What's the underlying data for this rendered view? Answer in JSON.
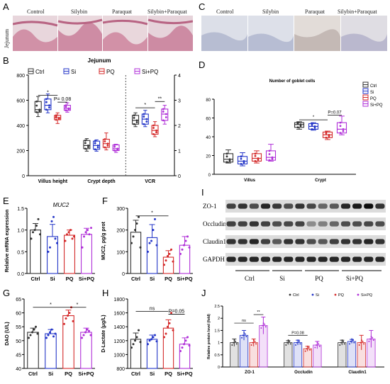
{
  "panels": {
    "A": {
      "letter": "A",
      "side_label": "Jejunum",
      "labels": [
        "Control",
        "Silybin",
        "Paraquat",
        "Silybin+Paraquat"
      ]
    },
    "C": {
      "letter": "C",
      "labels": [
        "Control",
        "Silybin",
        "Paraquat",
        "Silybin+Paraquat"
      ]
    },
    "I": {
      "letter": "I",
      "bands": [
        "ZO-1",
        "Occludin",
        "Claudin1",
        "GAPDH"
      ],
      "groups": [
        "Ctrl",
        "Si",
        "PQ",
        "Si+PQ"
      ]
    }
  },
  "colors": {
    "Ctrl": "#333333",
    "Si": "#2436c8",
    "PQ": "#d42a2a",
    "Si+PQ": "#b030d8"
  },
  "chart_data": [
    {
      "id": "B",
      "letter": "B",
      "type": "box",
      "title": "Jejunum",
      "legend": [
        "Ctrl",
        "Si",
        "PQ",
        "Si+PQ"
      ],
      "categories": [
        "Villus height",
        "Crypt depth",
        "VCR"
      ],
      "ylim_left": [
        0,
        800
      ],
      "yticks_left": [
        0,
        200,
        400,
        600,
        800
      ],
      "ylim_right": [
        0,
        4
      ],
      "yticks_right": [
        0,
        1,
        2,
        3,
        4
      ],
      "boxes": [
        {
          "cat": 0,
          "g": "Ctrl",
          "min": 470,
          "q1": 505,
          "med": 525,
          "q3": 590,
          "max": 630
        },
        {
          "cat": 0,
          "g": "Si",
          "min": 500,
          "q1": 525,
          "med": 560,
          "q3": 610,
          "max": 650
        },
        {
          "cat": 0,
          "g": "PQ",
          "min": 415,
          "q1": 445,
          "med": 460,
          "q3": 480,
          "max": 500
        },
        {
          "cat": 0,
          "g": "Si+PQ",
          "min": 505,
          "q1": 520,
          "med": 535,
          "q3": 560,
          "max": 580
        },
        {
          "cat": 1,
          "g": "Ctrl",
          "min": 195,
          "q1": 215,
          "med": 240,
          "q3": 280,
          "max": 295
        },
        {
          "cat": 1,
          "g": "Si",
          "min": 195,
          "q1": 210,
          "med": 240,
          "q3": 275,
          "max": 285
        },
        {
          "cat": 1,
          "g": "PQ",
          "min": 205,
          "q1": 225,
          "med": 255,
          "q3": 290,
          "max": 340
        },
        {
          "cat": 1,
          "g": "Si+PQ",
          "min": 185,
          "q1": 200,
          "med": 215,
          "q3": 245,
          "max": 250
        },
        {
          "cat": 2,
          "g": "Ctrl",
          "min": 1.95,
          "q1": 2.05,
          "med": 2.2,
          "q3": 2.4,
          "max": 2.5
        },
        {
          "cat": 2,
          "g": "Si",
          "min": 1.95,
          "q1": 2.05,
          "med": 2.25,
          "q3": 2.45,
          "max": 2.6
        },
        {
          "cat": 2,
          "g": "PQ",
          "min": 1.55,
          "q1": 1.65,
          "med": 1.8,
          "q3": 2.0,
          "max": 2.15
        },
        {
          "cat": 2,
          "g": "Si+PQ",
          "min": 2.05,
          "q1": 2.2,
          "med": 2.45,
          "q3": 2.65,
          "max": 2.8
        }
      ],
      "annotations": [
        {
          "text": "*",
          "cat": 0,
          "from": "Ctrl",
          "to": "PQ",
          "y": 640
        },
        {
          "text": "P= 0.08",
          "cat": 0,
          "from": "PQ",
          "to": "Si+PQ",
          "y": 585
        },
        {
          "text": "*",
          "cat": 2,
          "from": "Ctrl",
          "to": "PQ",
          "y": 2.7
        },
        {
          "text": "**",
          "cat": 2,
          "from": "PQ",
          "to": "Si+PQ",
          "y": 2.95
        }
      ]
    },
    {
      "id": "D",
      "letter": "D",
      "type": "box",
      "title": "Number of goblet cells",
      "legend": [
        "Ctrl",
        "Si",
        "PQ",
        "Si+PQ"
      ],
      "categories": [
        "Villus",
        "Crypt"
      ],
      "ylim": [
        0,
        80
      ],
      "yticks": [
        0,
        20,
        40,
        60,
        80
      ],
      "boxes": [
        {
          "cat": 0,
          "g": "Ctrl",
          "min": 12,
          "q1": 13,
          "med": 16,
          "q3": 22,
          "max": 26
        },
        {
          "cat": 0,
          "g": "Si",
          "min": 9,
          "q1": 11,
          "med": 14,
          "q3": 19,
          "max": 23
        },
        {
          "cat": 0,
          "g": "PQ",
          "min": 12,
          "q1": 14,
          "med": 17,
          "q3": 22,
          "max": 25
        },
        {
          "cat": 0,
          "g": "Si+PQ",
          "min": 14,
          "q1": 15,
          "med": 18,
          "q3": 25,
          "max": 32
        },
        {
          "cat": 1,
          "g": "Ctrl",
          "min": 48,
          "q1": 50,
          "med": 53,
          "q3": 55,
          "max": 56
        },
        {
          "cat": 1,
          "g": "Si",
          "min": 47,
          "q1": 48,
          "med": 51,
          "q3": 54,
          "max": 55
        },
        {
          "cat": 1,
          "g": "PQ",
          "min": 37,
          "q1": 39,
          "med": 42,
          "q3": 45,
          "max": 46
        },
        {
          "cat": 1,
          "g": "Si+PQ",
          "min": 42,
          "q1": 44,
          "med": 48,
          "q3": 55,
          "max": 62
        }
      ],
      "annotations": [
        {
          "text": "*",
          "cat": 1,
          "from": "Ctrl",
          "to": "PQ",
          "y": 58
        },
        {
          "text": "P=0.07",
          "cat": 1,
          "from": "PQ",
          "to": "Si+PQ",
          "y": 63
        }
      ]
    },
    {
      "id": "E",
      "letter": "E",
      "type": "bar",
      "title": "MUC2",
      "ylabel": "Relative mRNA expression",
      "categories": [
        "Ctrl",
        "Si",
        "PQ",
        "Si+PQ"
      ],
      "values": [
        1.0,
        0.85,
        0.88,
        0.9
      ],
      "errors": [
        0.15,
        0.28,
        0.12,
        0.14
      ],
      "points": [
        [
          0.8,
          0.95,
          1.0,
          1.1,
          1.25,
          0.9
        ],
        [
          0.5,
          0.6,
          1.2,
          1.3,
          0.8,
          0.7
        ],
        [
          0.75,
          0.9,
          0.95,
          1.0,
          0.8,
          0.85
        ],
        [
          0.6,
          0.85,
          0.95,
          1.0,
          0.9,
          1.05
        ]
      ],
      "ylim": [
        0,
        1.5
      ],
      "yticks": [
        0.0,
        0.5,
        1.0,
        1.5
      ],
      "ytick_labels": [
        "0.0",
        "0.5",
        "1.0",
        "1.5"
      ],
      "annotations": []
    },
    {
      "id": "F",
      "letter": "F",
      "type": "bar",
      "title": "",
      "ylabel": "MUC2, pg/g prot",
      "categories": [
        "Ctrl",
        "Si",
        "PQ",
        "Si+PQ"
      ],
      "values": [
        190,
        165,
        75,
        130
      ],
      "errors": [
        55,
        60,
        30,
        40
      ],
      "points": [
        [
          140,
          170,
          200,
          230,
          260,
          120
        ],
        [
          100,
          140,
          150,
          200,
          250,
          130
        ],
        [
          40,
          60,
          80,
          90,
          110,
          55
        ],
        [
          90,
          110,
          130,
          150,
          170,
          120
        ]
      ],
      "ylim": [
        0,
        300
      ],
      "yticks": [
        0,
        100,
        200,
        300
      ],
      "ytick_labels": [
        "0",
        "100",
        "200",
        "300"
      ],
      "annotations": [
        {
          "text": "*",
          "from": "Ctrl",
          "to": "PQ",
          "y": 265
        }
      ]
    },
    {
      "id": "G",
      "letter": "G",
      "type": "bar",
      "title": "",
      "ylabel": "DAO (U/L)",
      "categories": [
        "Ctrl",
        "Si",
        "PQ",
        "Si+PQ"
      ],
      "values": [
        53,
        52.5,
        59,
        53
      ],
      "errors": [
        1.5,
        1.5,
        2,
        1.5
      ],
      "points": [
        [
          51,
          52,
          53,
          54,
          55,
          52.5
        ],
        [
          51,
          52,
          53,
          54,
          51.5,
          52.5
        ],
        [
          56,
          58,
          59,
          60,
          62,
          57
        ],
        [
          51,
          52,
          53,
          54,
          53.5,
          52
        ]
      ],
      "ylim": [
        40,
        65
      ],
      "yticks": [
        40,
        45,
        50,
        55,
        60,
        65
      ],
      "ytick_labels": [
        "40",
        "45",
        "50",
        "55",
        "60",
        "65"
      ],
      "annotations": [
        {
          "text": "*",
          "from": "Ctrl",
          "to": "PQ",
          "y": 62
        },
        {
          "text": "*",
          "from": "PQ",
          "to": "Si+PQ",
          "y": 62
        }
      ]
    },
    {
      "id": "H",
      "letter": "H",
      "type": "bar",
      "title": "",
      "ylabel": "D-Lactate (μg/L)",
      "categories": [
        "Ctrl",
        "Si",
        "PQ",
        "Si+PQ"
      ],
      "values": [
        1220,
        1220,
        1380,
        1150
      ],
      "errors": [
        90,
        60,
        120,
        90
      ],
      "points": [
        [
          1100,
          1150,
          1200,
          1250,
          1350,
          1180
        ],
        [
          1150,
          1200,
          1220,
          1250,
          1280,
          1190
        ],
        [
          1250,
          1300,
          1400,
          1450,
          1600,
          1350
        ],
        [
          1050,
          1100,
          1150,
          1200,
          1250,
          1130
        ]
      ],
      "ylim": [
        800,
        1800
      ],
      "yticks": [
        800,
        1000,
        1200,
        1400,
        1600,
        1800
      ],
      "ytick_labels": [
        "800",
        "1000",
        "1200",
        "1400",
        "1600",
        "1800"
      ],
      "annotations": [
        {
          "text": "ns",
          "from": "Ctrl",
          "to": "PQ",
          "y": 1620
        },
        {
          "text": "P=0.05",
          "from": "PQ",
          "to": "Si+PQ",
          "y": 1580
        }
      ]
    },
    {
      "id": "J",
      "letter": "J",
      "type": "bar",
      "title": "",
      "ylabel": "Relative protein level (fold)",
      "legend": [
        "Ctrl",
        "Si",
        "PQ",
        "Si+PQ"
      ],
      "categories": [
        "ZO-1",
        "Occludin",
        "Claudin1"
      ],
      "series": [
        {
          "name": "Ctrl",
          "values": [
            1.0,
            1.0,
            1.0
          ],
          "errors": [
            0.15,
            0.08,
            0.1
          ]
        },
        {
          "name": "Si",
          "values": [
            1.3,
            1.0,
            1.05
          ],
          "errors": [
            0.2,
            0.1,
            0.08
          ]
        },
        {
          "name": "PQ",
          "values": [
            1.0,
            0.75,
            1.0
          ],
          "errors": [
            0.15,
            0.1,
            0.3
          ]
        },
        {
          "name": "Si+PQ",
          "values": [
            1.7,
            0.9,
            1.15
          ],
          "errors": [
            0.35,
            0.15,
            0.35
          ]
        }
      ],
      "ylim": [
        0,
        2.5
      ],
      "yticks": [
        0,
        0.5,
        1,
        1.5,
        2,
        2.5
      ],
      "annotations": [
        {
          "text": "ns",
          "cat": 0,
          "from": "Ctrl",
          "to": "PQ",
          "y": 1.8
        },
        {
          "text": "**",
          "cat": 0,
          "from": "PQ",
          "to": "Si+PQ",
          "y": 2.15
        },
        {
          "text": "P=0.08",
          "cat": 1,
          "from": "Ctrl",
          "to": "PQ",
          "y": 1.3
        }
      ]
    }
  ]
}
